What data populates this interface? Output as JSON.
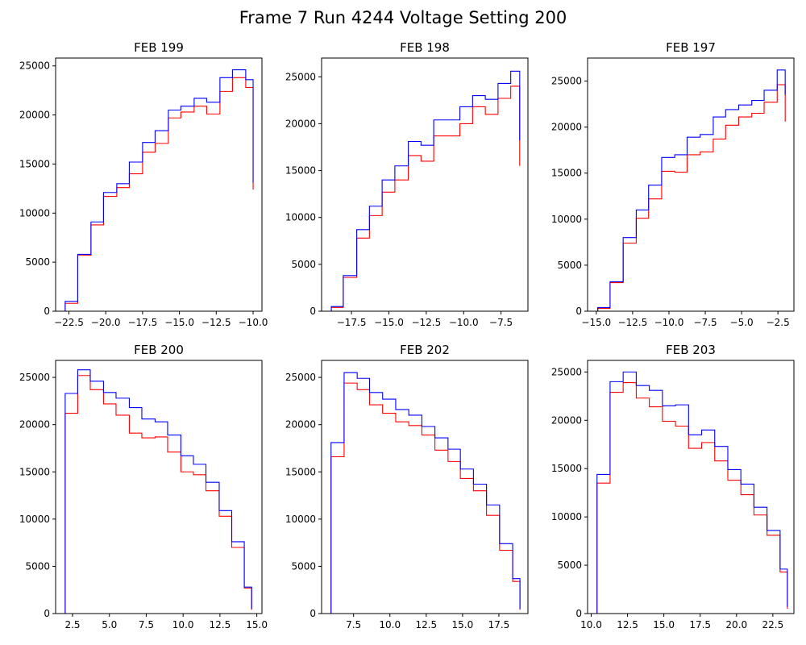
{
  "figure": {
    "title": "Frame 7 Run 4244 Voltage Setting 200"
  },
  "colors": {
    "series_a": "#ff0000",
    "series_b": "#0000ff",
    "axis": "#000000",
    "background": "#ffffff"
  },
  "chart_data": [
    {
      "type": "histogram-step",
      "title": "FEB 199",
      "xlim": [
        -23.4,
        -9.4
      ],
      "ylim": [
        0,
        25800
      ],
      "xticks": [
        -22.5,
        -20.0,
        -17.5,
        -15.0,
        -12.5,
        -10.0
      ],
      "xtick_labels": [
        "−22.5",
        "−20.0",
        "−17.5",
        "−15.0",
        "−12.5",
        "−10.0"
      ],
      "yticks": [
        0,
        5000,
        10000,
        15000,
        20000,
        25000
      ],
      "ytick_labels": [
        "0",
        "5000",
        "10000",
        "15000",
        "20000",
        "25000"
      ],
      "bin_edges": [
        -22.75,
        -21.9,
        -21.0,
        -20.15,
        -19.25,
        -18.4,
        -17.5,
        -16.65,
        -15.75,
        -14.9,
        -14.0,
        -13.15,
        -12.25,
        -11.4,
        -10.5,
        -10.0
      ],
      "series": [
        {
          "color": "#ff0000",
          "values": [
            800,
            5700,
            8800,
            11700,
            12600,
            14000,
            16200,
            17100,
            19700,
            20300,
            20900,
            20100,
            22400,
            23800,
            22800,
            12400
          ]
        },
        {
          "color": "#0000ff",
          "values": [
            1000,
            5800,
            9100,
            12100,
            13000,
            15200,
            17200,
            18400,
            20500,
            20900,
            21700,
            21300,
            23800,
            24600,
            23600,
            13100
          ]
        }
      ]
    },
    {
      "type": "histogram-step",
      "title": "FEB 198",
      "xlim": [
        -19.5,
        -5.7
      ],
      "ylim": [
        0,
        27000
      ],
      "xticks": [
        -17.5,
        -15.0,
        -12.5,
        -10.0,
        -7.5
      ],
      "xtick_labels": [
        "−17.5",
        "−15.0",
        "−12.5",
        "−10.0",
        "−7.5"
      ],
      "yticks": [
        0,
        5000,
        10000,
        15000,
        20000,
        25000
      ],
      "ytick_labels": [
        "0",
        "5000",
        "10000",
        "15000",
        "20000",
        "25000"
      ],
      "bin_edges": [
        -18.85,
        -18.05,
        -17.15,
        -16.3,
        -15.45,
        -14.6,
        -13.7,
        -12.85,
        -12.0,
        -11.15,
        -10.25,
        -9.4,
        -8.55,
        -7.7,
        -6.85,
        -6.25
      ],
      "series": [
        {
          "color": "#ff0000",
          "values": [
            400,
            3600,
            7800,
            10200,
            12700,
            14000,
            16600,
            16000,
            18700,
            18700,
            20000,
            21800,
            21000,
            22700,
            24000,
            15500
          ]
        },
        {
          "color": "#0000ff",
          "values": [
            500,
            3800,
            8700,
            11200,
            14000,
            15500,
            18100,
            17700,
            20400,
            20400,
            21800,
            23000,
            22600,
            24300,
            25600,
            18200
          ]
        }
      ]
    },
    {
      "type": "histogram-step",
      "title": "FEB 197",
      "xlim": [
        -15.6,
        -1.4
      ],
      "ylim": [
        0,
        27500
      ],
      "xticks": [
        -15.0,
        -12.5,
        -10.0,
        -7.5,
        -5.0,
        -2.5
      ],
      "xtick_labels": [
        "−15.0",
        "−12.5",
        "−10.0",
        "−7.5",
        "−5.0",
        "−2.5"
      ],
      "yticks": [
        0,
        5000,
        10000,
        15000,
        20000,
        25000
      ],
      "ytick_labels": [
        "0",
        "5000",
        "10000",
        "15000",
        "20000",
        "25000"
      ],
      "bin_edges": [
        -14.9,
        -14.05,
        -13.15,
        -12.25,
        -11.4,
        -10.5,
        -9.6,
        -8.75,
        -7.85,
        -6.95,
        -6.1,
        -5.2,
        -4.3,
        -3.45,
        -2.55,
        -2.0
      ],
      "series": [
        {
          "color": "#ff0000",
          "values": [
            300,
            3100,
            7400,
            10100,
            12200,
            15200,
            15100,
            17000,
            17300,
            18700,
            20200,
            21100,
            21500,
            22700,
            24600,
            20600
          ]
        },
        {
          "color": "#0000ff",
          "values": [
            400,
            3200,
            8000,
            11000,
            13700,
            16700,
            17000,
            18900,
            19200,
            21100,
            21900,
            22400,
            22900,
            24000,
            26200,
            23500
          ]
        }
      ]
    },
    {
      "type": "histogram-step",
      "title": "FEB 200",
      "xlim": [
        1.35,
        15.35
      ],
      "ylim": [
        0,
        26800
      ],
      "xticks": [
        2.5,
        5.0,
        7.5,
        10.0,
        12.5,
        15.0
      ],
      "xtick_labels": [
        "2.5",
        "5.0",
        "7.5",
        "10.0",
        "12.5",
        "15.0"
      ],
      "yticks": [
        0,
        5000,
        10000,
        15000,
        20000,
        25000
      ],
      "ytick_labels": [
        "0",
        "5000",
        "10000",
        "15000",
        "20000",
        "25000"
      ],
      "bin_edges": [
        2.0,
        2.85,
        3.7,
        4.6,
        5.45,
        6.35,
        7.2,
        8.1,
        8.95,
        9.85,
        10.7,
        11.55,
        12.45,
        13.3,
        14.15,
        14.65
      ],
      "series": [
        {
          "color": "#ff0000",
          "values": [
            21200,
            25200,
            23700,
            22200,
            21000,
            19100,
            18600,
            18700,
            17100,
            15000,
            14700,
            13000,
            10300,
            7000,
            2700,
            400
          ]
        },
        {
          "color": "#0000ff",
          "values": [
            23300,
            25800,
            24600,
            23400,
            22800,
            21800,
            20600,
            20300,
            18900,
            16700,
            15800,
            13900,
            10900,
            7600,
            2800,
            500
          ]
        }
      ]
    },
    {
      "type": "histogram-step",
      "title": "FEB 202",
      "xlim": [
        5.3,
        19.5
      ],
      "ylim": [
        0,
        26800
      ],
      "xticks": [
        7.5,
        10.0,
        12.5,
        15.0,
        17.5
      ],
      "xtick_labels": [
        "7.5",
        "10.0",
        "12.5",
        "15.0",
        "17.5"
      ],
      "yticks": [
        0,
        5000,
        10000,
        15000,
        20000,
        25000
      ],
      "ytick_labels": [
        "0",
        "5000",
        "10000",
        "15000",
        "20000",
        "25000"
      ],
      "bin_edges": [
        5.95,
        6.85,
        7.75,
        8.6,
        9.5,
        10.4,
        11.3,
        12.2,
        13.1,
        14.0,
        14.85,
        15.75,
        16.65,
        17.55,
        18.45,
        18.95
      ],
      "series": [
        {
          "color": "#ff0000",
          "values": [
            16600,
            24400,
            23700,
            22100,
            21200,
            20300,
            19900,
            18900,
            17300,
            16100,
            14300,
            13000,
            10400,
            6700,
            3400,
            400
          ]
        },
        {
          "color": "#0000ff",
          "values": [
            18100,
            25500,
            24900,
            23400,
            22700,
            21600,
            21000,
            19800,
            18600,
            17400,
            15300,
            13700,
            11500,
            7400,
            3700,
            500
          ]
        }
      ]
    },
    {
      "type": "histogram-step",
      "title": "FEB 203",
      "xlim": [
        9.75,
        23.95
      ],
      "ylim": [
        0,
        26200
      ],
      "xticks": [
        10.0,
        12.5,
        15.0,
        17.5,
        20.0,
        22.5
      ],
      "xtick_labels": [
        "10.0",
        "12.5",
        "15.0",
        "17.5",
        "20.0",
        "22.5"
      ],
      "yticks": [
        0,
        5000,
        10000,
        15000,
        20000,
        25000
      ],
      "ytick_labels": [
        "0",
        "5000",
        "10000",
        "15000",
        "20000",
        "25000"
      ],
      "bin_edges": [
        10.4,
        11.3,
        12.2,
        13.1,
        14.0,
        14.9,
        15.8,
        16.7,
        17.6,
        18.5,
        19.4,
        20.3,
        21.2,
        22.1,
        23.0,
        23.5
      ],
      "series": [
        {
          "color": "#ff0000",
          "values": [
            13500,
            22900,
            23900,
            22300,
            21400,
            19900,
            19400,
            17100,
            17700,
            15800,
            13800,
            12300,
            10200,
            8100,
            4300,
            500
          ]
        },
        {
          "color": "#0000ff",
          "values": [
            14400,
            24000,
            25000,
            23600,
            23100,
            21500,
            21600,
            18500,
            19000,
            17300,
            14900,
            13400,
            11000,
            8600,
            4600,
            700
          ]
        }
      ]
    }
  ]
}
